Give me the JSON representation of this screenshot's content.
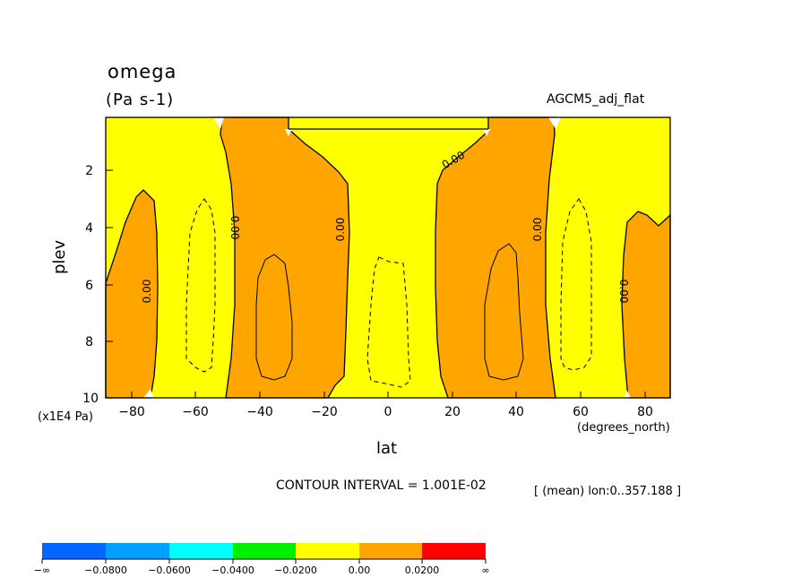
{
  "header": {
    "title": "omega",
    "units": "(Pa s-1)",
    "model": "AGCM5_adj_flat"
  },
  "footer": {
    "contour_interval": "CONTOUR INTERVAL = 1.001E-02",
    "mean_note": "[ (mean) lon:0..357.188 ]"
  },
  "chart_data": {
    "type": "heatmap",
    "title": "omega",
    "subtitle": "(Pa s-1)",
    "xlabel": "lat",
    "x_unit": "(degrees_north)",
    "ylabel": "plev",
    "y_unit": "(x1E4 Pa)",
    "xlim": [
      -88,
      88
    ],
    "ylim": [
      10,
      0.4
    ],
    "x_ticks": [
      "−80",
      "−60",
      "−40",
      "−20",
      "0",
      "20",
      "40",
      "60",
      "80"
    ],
    "y_ticks": [
      "2",
      "4",
      "6",
      "8",
      "10"
    ],
    "contour_labels": [
      "0.00",
      "0.00",
      "0.00",
      "0.00",
      "0.00",
      "0.00",
      "0.00"
    ],
    "colors": {
      "negative_small": "#ffff00",
      "positive_small": "#ffa500"
    },
    "colorbar": {
      "colors": [
        "#0066ff",
        "#00a0ff",
        "#00ffff",
        "#00ee00",
        "#ffff00",
        "#ffa500",
        "#ff0000"
      ],
      "labels": [
        "−∞",
        "−0.0800",
        "−0.0600",
        "−0.0400",
        "−0.0200",
        "0.00",
        "0.0200",
        "∞"
      ]
    }
  }
}
